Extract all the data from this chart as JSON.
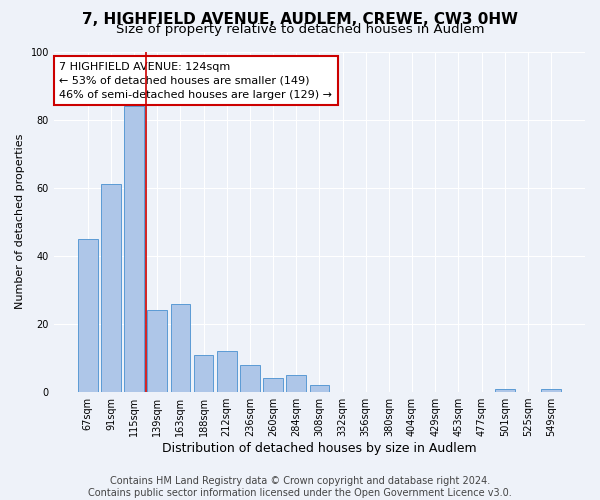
{
  "title": "7, HIGHFIELD AVENUE, AUDLEM, CREWE, CW3 0HW",
  "subtitle": "Size of property relative to detached houses in Audlem",
  "xlabel": "Distribution of detached houses by size in Audlem",
  "ylabel": "Number of detached properties",
  "bar_labels": [
    "67sqm",
    "91sqm",
    "115sqm",
    "139sqm",
    "163sqm",
    "188sqm",
    "212sqm",
    "236sqm",
    "260sqm",
    "284sqm",
    "308sqm",
    "332sqm",
    "356sqm",
    "380sqm",
    "404sqm",
    "429sqm",
    "453sqm",
    "477sqm",
    "501sqm",
    "525sqm",
    "549sqm"
  ],
  "bar_values": [
    45,
    61,
    84,
    24,
    26,
    11,
    12,
    8,
    4,
    5,
    2,
    0,
    0,
    0,
    0,
    0,
    0,
    0,
    1,
    0,
    1
  ],
  "bar_color": "#aec6e8",
  "bar_edge_color": "#5b9bd5",
  "vline_color": "#cc0000",
  "annotation_box_text": "7 HIGHFIELD AVENUE: 124sqm\n← 53% of detached houses are smaller (149)\n46% of semi-detached houses are larger (129) →",
  "annotation_box_color": "#cc0000",
  "annotation_box_fill": "#ffffff",
  "ylim": [
    0,
    100
  ],
  "yticks": [
    0,
    20,
    40,
    60,
    80,
    100
  ],
  "background_color": "#eef2f9",
  "grid_color": "#ffffff",
  "footer_text": "Contains HM Land Registry data © Crown copyright and database right 2024.\nContains public sector information licensed under the Open Government Licence v3.0.",
  "title_fontsize": 11,
  "subtitle_fontsize": 9.5,
  "xlabel_fontsize": 9,
  "ylabel_fontsize": 8,
  "annotation_fontsize": 8,
  "tick_fontsize": 7,
  "footer_fontsize": 7
}
